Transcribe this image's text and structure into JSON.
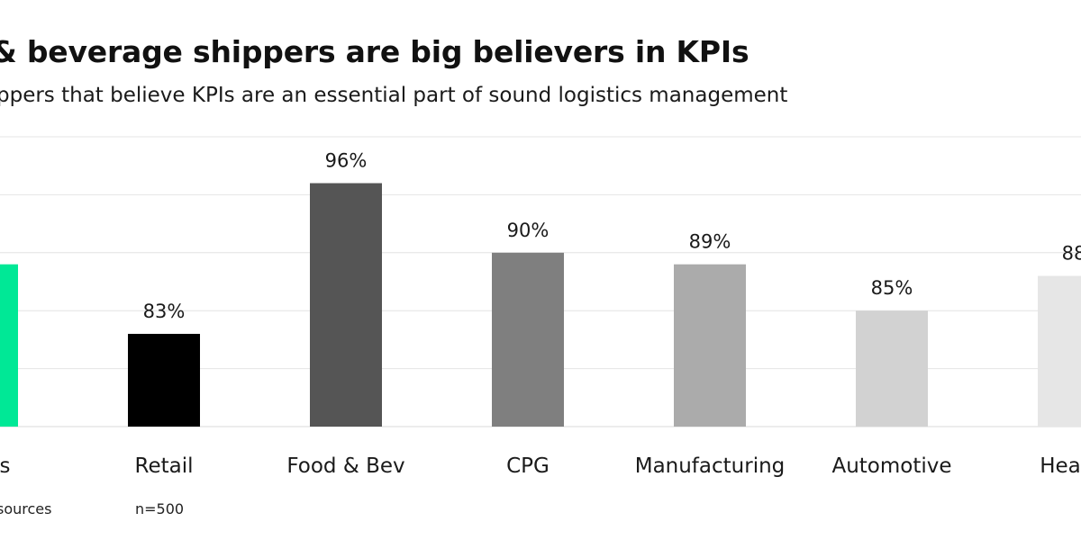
{
  "title": "& beverage shippers are big believers in KPIs",
  "subtitle": "ppers that believe KPIs are an essential part of sound logistics management",
  "footer": {
    "source": "sources",
    "sample": "n=500"
  },
  "chart_data": {
    "type": "bar",
    "categories": [
      "stries",
      "Retail",
      "Food & Bev",
      "CPG",
      "Manufacturing",
      "Automotive",
      "Health"
    ],
    "values": [
      89,
      83,
      96,
      90,
      89,
      85,
      88
    ],
    "value_labels": [
      "%",
      "83%",
      "96%",
      "90%",
      "89%",
      "85%",
      "88"
    ],
    "colors": [
      "#00e896",
      "#000000",
      "#555555",
      "#7f7f7f",
      "#ababab",
      "#d2d2d2",
      "#e6e6e6"
    ],
    "ylim": [
      75,
      100
    ],
    "grid": true,
    "title": "& beverage shippers are big believers in KPIs",
    "xlabel": "",
    "ylabel": ""
  }
}
